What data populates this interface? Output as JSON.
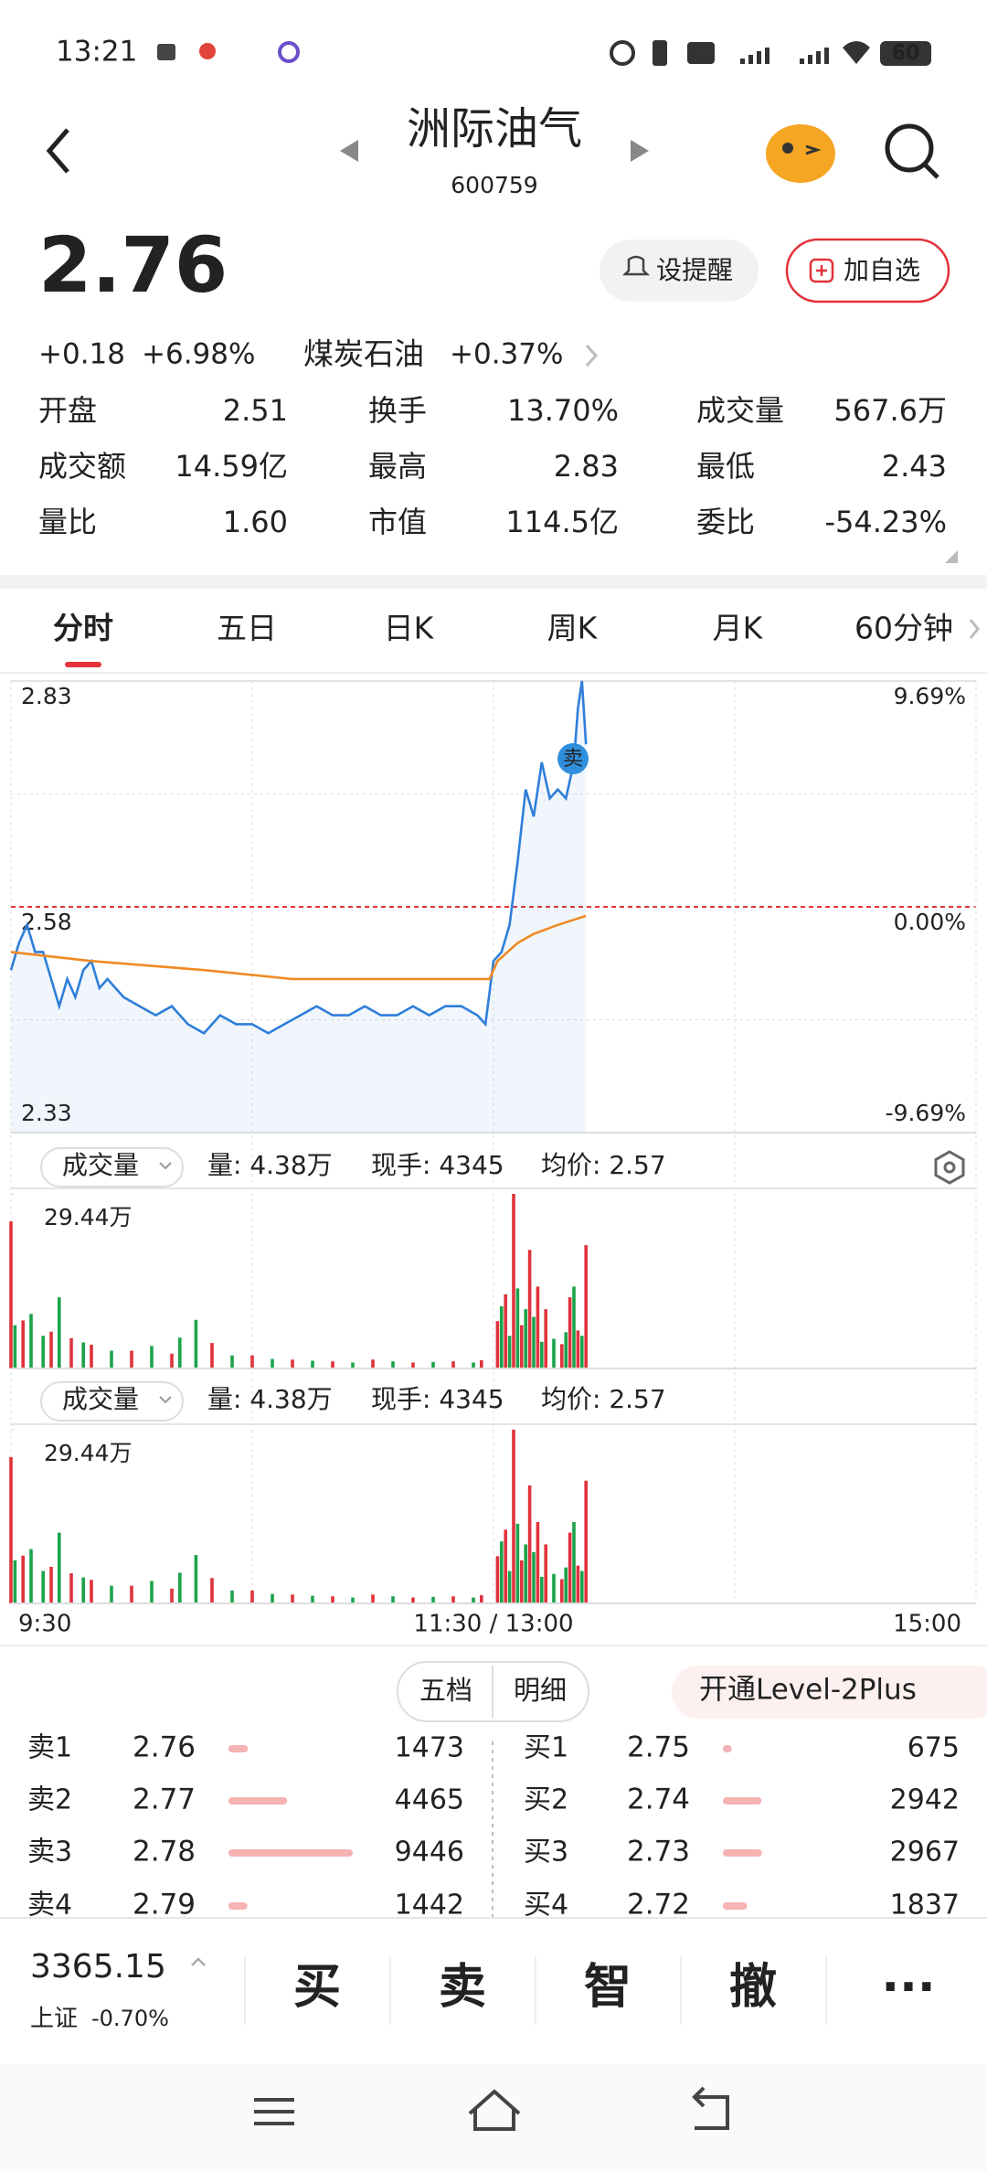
{
  "status_bar": {
    "time": "13:21",
    "battery": "60"
  },
  "header": {
    "title": "洲际油气",
    "code": "600759"
  },
  "quote": {
    "price": "2.76",
    "change": "+0.18",
    "change_pct": "+6.98%",
    "sector": "煤炭石油",
    "sector_change": "+0.37%",
    "up_color": "#e2323a"
  },
  "buttons": {
    "alert": "设提醒",
    "watchlist": "加自选"
  },
  "stats": [
    {
      "label": "开盘",
      "value": "2.51",
      "color": "#1aa34a"
    },
    {
      "label": "换手",
      "value": "13.70%",
      "color": "#222222"
    },
    {
      "label": "成交量",
      "value": "567.6万",
      "color": "#222222"
    },
    {
      "label": "成交额",
      "value": "14.59亿",
      "color": "#222222"
    },
    {
      "label": "最高",
      "value": "2.83",
      "color": "#e2323a"
    },
    {
      "label": "最低",
      "value": "2.43",
      "color": "#1aa34a"
    },
    {
      "label": "量比",
      "value": "1.60",
      "color": "#222222"
    },
    {
      "label": "市值",
      "value": "114.5亿",
      "color": "#222222"
    },
    {
      "label": "委比",
      "value": "-54.23%",
      "color": "#1aa34a"
    }
  ],
  "tabs": {
    "items": [
      "分时",
      "五日",
      "日K",
      "周K",
      "月K",
      "60分钟"
    ],
    "active": 0
  },
  "chart_data": [
    {
      "type": "line",
      "xlim": [
        0,
        240
      ],
      "xticks": [
        {
          "value": 0,
          "label": "9:30"
        },
        {
          "value": 120,
          "label": "11:30 / 13:00"
        },
        {
          "value": 240,
          "label": "15:00"
        }
      ],
      "ylim": [
        2.33,
        2.83
      ],
      "yticks": [
        2.83,
        2.58,
        2.33
      ],
      "y2lim": [
        -9.69,
        9.69
      ],
      "y2ticks": [
        {
          "value": 9.69,
          "label": "9.69%"
        },
        {
          "value": 0,
          "label": "0.00%"
        },
        {
          "value": -9.69,
          "label": "-9.69%"
        }
      ],
      "series": [
        {
          "color": "#2f7fd9",
          "x": [
            0,
            2,
            4,
            6,
            8,
            10,
            12,
            14,
            16,
            18,
            20,
            22,
            24,
            28,
            32,
            36,
            40,
            44,
            48,
            52,
            56,
            60,
            64,
            68,
            72,
            76,
            80,
            84,
            88,
            92,
            96,
            100,
            104,
            108,
            112,
            116,
            118,
            120,
            122,
            124,
            126,
            128,
            130,
            132,
            134,
            136,
            138,
            140,
            141,
            142,
            143
          ],
          "values": [
            2.51,
            2.54,
            2.56,
            2.53,
            2.53,
            2.5,
            2.47,
            2.5,
            2.48,
            2.51,
            2.52,
            2.49,
            2.5,
            2.48,
            2.47,
            2.46,
            2.47,
            2.45,
            2.44,
            2.46,
            2.45,
            2.45,
            2.44,
            2.45,
            2.46,
            2.47,
            2.46,
            2.46,
            2.47,
            2.46,
            2.46,
            2.47,
            2.46,
            2.47,
            2.47,
            2.46,
            2.45,
            2.52,
            2.53,
            2.56,
            2.63,
            2.71,
            2.68,
            2.74,
            2.7,
            2.71,
            2.7,
            2.74,
            2.8,
            2.83,
            2.76
          ]
        },
        {
          "color": "#f08a24",
          "x": [
            0,
            20,
            48,
            70,
            110,
            119,
            121,
            126,
            130,
            136,
            143
          ],
          "values": [
            2.53,
            2.52,
            2.51,
            2.5,
            2.5,
            2.5,
            2.52,
            2.54,
            2.55,
            2.56,
            2.57
          ]
        }
      ],
      "marker_label": "卖",
      "up_color": "#e2323a",
      "down_color": "#1aa34a",
      "flat_color": "#888888"
    },
    {
      "type": "bar",
      "xlim": [
        0,
        240
      ],
      "ylim": [
        0,
        29.44
      ],
      "yticks": [
        {
          "value": 29.44,
          "label": "29.44万"
        }
      ],
      "series": [
        {
          "color": "#e0333c",
          "x": [
            0,
            3,
            10,
            15,
            20,
            30,
            40,
            50,
            60,
            70,
            80,
            90,
            100,
            110,
            117,
            121,
            123,
            125,
            127,
            129,
            131,
            133,
            137,
            139,
            141,
            143
          ],
          "values": [
            24.8,
            8.1,
            6.2,
            5.1,
            4.0,
            3.0,
            2.5,
            4.3,
            2.2,
            1.5,
            1.2,
            1.5,
            1.0,
            1.2,
            1.4,
            8.0,
            12.5,
            29.44,
            7.3,
            20.0,
            13.8,
            10.0,
            4.1,
            12.0,
            6.4,
            20.8
          ]
        },
        {
          "color": "#1ca44a",
          "x": [
            1,
            5,
            8,
            12,
            18,
            25,
            35,
            42,
            46,
            55,
            65,
            75,
            85,
            95,
            105,
            115,
            122,
            124,
            126,
            128,
            130,
            132,
            135,
            138,
            140,
            142
          ],
          "values": [
            7.3,
            9.2,
            5.5,
            12.0,
            4.4,
            3.0,
            3.8,
            5.2,
            8.2,
            2.2,
            1.6,
            1.3,
            1.0,
            1.2,
            1.1,
            1.0,
            10.5,
            5.5,
            13.5,
            10.0,
            8.7,
            4.5,
            5.0,
            6.1,
            13.8,
            5.5
          ]
        }
      ]
    }
  ],
  "volume_panels": [
    {
      "selector": "成交量",
      "volume": "量: 4.38万",
      "last": "现手: 4345",
      "avg": "均价: 2.57"
    },
    {
      "selector": "成交量",
      "volume": "量: 4.38万",
      "last": "现手: 4345",
      "avg": "均价: 2.57"
    }
  ],
  "order_book": {
    "tabs": [
      "五档",
      "明细"
    ],
    "active": 0,
    "level2": "开通Level-2Plus",
    "bar_color": "#f5b3b3",
    "price_color": "#e2323a",
    "asks": [
      {
        "label": "卖1",
        "price": "2.76",
        "volume": 1473
      },
      {
        "label": "卖2",
        "price": "2.77",
        "volume": 4465
      },
      {
        "label": "卖3",
        "price": "2.78",
        "volume": 9446
      },
      {
        "label": "卖4",
        "price": "2.79",
        "volume": 1442
      }
    ],
    "bids": [
      {
        "label": "买1",
        "price": "2.75",
        "volume": 675
      },
      {
        "label": "买2",
        "price": "2.74",
        "volume": 2942
      },
      {
        "label": "买3",
        "price": "2.73",
        "volume": 2967
      },
      {
        "label": "买4",
        "price": "2.72",
        "volume": 1837
      }
    ]
  },
  "bottom_bar": {
    "index_value": "3365.15",
    "index_name": "上证",
    "index_change": "-0.70%",
    "index_color": "#1aa34a",
    "actions": [
      {
        "text": "买",
        "color": "#e2323a"
      },
      {
        "text": "卖",
        "color": "#2a7bd6"
      },
      {
        "text": "智",
        "color": "#e58c1f"
      },
      {
        "text": "撤",
        "color": "#3a4556"
      },
      {
        "text": "···",
        "color": "#3a4556"
      }
    ]
  }
}
